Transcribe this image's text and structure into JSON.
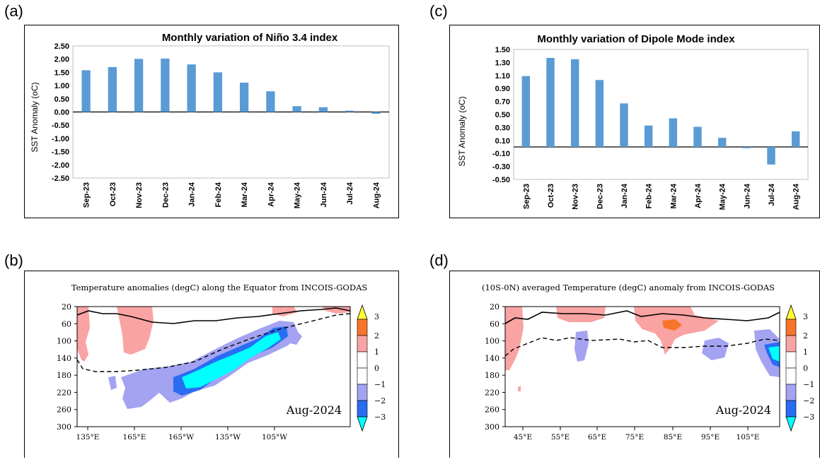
{
  "panels": {
    "a": {
      "label": "(a)"
    },
    "b": {
      "label": "(b)"
    },
    "c": {
      "label": "(c)"
    },
    "d": {
      "label": "(d)"
    }
  },
  "colors": {
    "bar": "#5b9bd5",
    "warm1": "#f9a3a3",
    "warm2": "#f7742b",
    "cool1": "#a3a3f2",
    "cool2": "#2a6cf2",
    "cool3": "#00ffff",
    "yellow": "#ffff33"
  },
  "chart_data": [
    {
      "id": "nino34",
      "type": "bar",
      "title": "Monthly variation of Niño 3.4 index",
      "ylabel": "SST Anomaly (oC)",
      "xlabel": "",
      "categories": [
        "Sep-23",
        "Oct-23",
        "Nov-23",
        "Dec-23",
        "Jan-24",
        "Feb-24",
        "Mar-24",
        "Apr-24",
        "May-24",
        "Jun-24",
        "Jul-24",
        "Aug-24"
      ],
      "values": [
        1.58,
        1.7,
        2.01,
        2.02,
        1.8,
        1.5,
        1.11,
        0.78,
        0.22,
        0.18,
        0.05,
        -0.07
      ],
      "yticks": [
        "2.50",
        "2.00",
        "1.50",
        "1.00",
        "0.50",
        "0.00",
        "-0.50",
        "-1.00",
        "-1.50",
        "-2.00",
        "-2.50"
      ],
      "ylim": [
        -2.5,
        2.5
      ]
    },
    {
      "id": "dmi",
      "type": "bar",
      "title": "Monthly variation of Dipole Mode index",
      "ylabel": "SST Anomaly (oC)",
      "xlabel": "",
      "categories": [
        "Sep-23",
        "Oct-23",
        "Nov-23",
        "Dec-23",
        "Jan-24",
        "Feb-24",
        "Mar-24",
        "Apr-24",
        "May-24",
        "Jun-24",
        "Jul-24",
        "Aug-24"
      ],
      "values": [
        1.09,
        1.37,
        1.35,
        1.03,
        0.67,
        0.33,
        0.44,
        0.31,
        0.14,
        -0.02,
        -0.27,
        0.24
      ],
      "yticks": [
        "1.50",
        "1.30",
        "1.10",
        "0.90",
        "0.70",
        "0.50",
        "0.30",
        "0.10",
        "-0.10",
        "-0.30",
        "-0.50"
      ],
      "ylim": [
        -0.5,
        1.5
      ]
    },
    {
      "id": "equator_section",
      "type": "heatmap",
      "title": "Temperature anomalies (degC) along the Equator from INCOIS-GODAS",
      "date_label": "Aug-2024",
      "yticks": [
        "20",
        "60",
        "100",
        "140",
        "180",
        "220",
        "260",
        "300"
      ],
      "xticks": [
        "135°E",
        "165°E",
        "165°W",
        "135°W",
        "105°W"
      ],
      "colorbar_ticks": [
        "3",
        "2",
        "1",
        "0",
        "−1",
        "−2",
        "−3"
      ]
    },
    {
      "id": "io_section",
      "type": "heatmap",
      "title": "(10S-0N) averaged Temperature (degC) anomaly from INCOIS-GODAS",
      "date_label": "Aug-2024",
      "yticks": [
        "20",
        "60",
        "100",
        "140",
        "180",
        "220",
        "260",
        "300"
      ],
      "xticks": [
        "45°E",
        "55°E",
        "65°E",
        "75°E",
        "85°E",
        "95°E",
        "105°E"
      ],
      "colorbar_ticks": [
        "3",
        "2",
        "1",
        "0",
        "−1",
        "−2",
        "−3"
      ]
    }
  ]
}
